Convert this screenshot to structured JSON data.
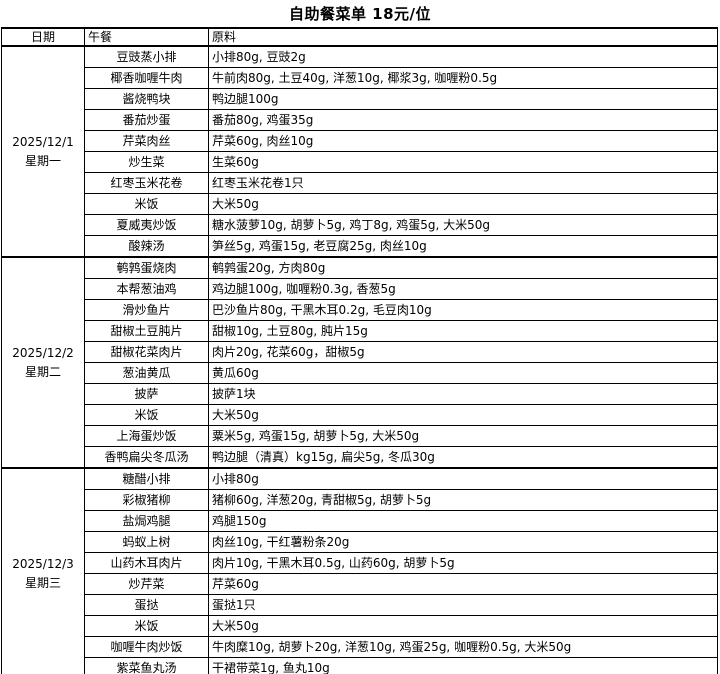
{
  "title": "自助餐菜单 18元/位",
  "header": {
    "date": "日期",
    "lunch": "午餐",
    "ingredients": "原料"
  },
  "days": [
    {
      "date": "2025/12/1",
      "weekday": "星期一",
      "rows": [
        {
          "dish": "豆豉蒸小排",
          "ingredients": "小排80g, 豆豉2g"
        },
        {
          "dish": "椰香咖喱牛肉",
          "ingredients": "牛前肉80g, 土豆40g, 洋葱10g, 椰浆3g, 咖喱粉0.5g"
        },
        {
          "dish": "酱烧鸭块",
          "ingredients": "鸭边腿100g"
        },
        {
          "dish": "番茄炒蛋",
          "ingredients": "番茄80g, 鸡蛋35g"
        },
        {
          "dish": "芹菜肉丝",
          "ingredients": "芹菜60g, 肉丝10g"
        },
        {
          "dish": "炒生菜",
          "ingredients": "生菜60g"
        },
        {
          "dish": "红枣玉米花卷",
          "ingredients": "红枣玉米花卷1只"
        },
        {
          "dish": "米饭",
          "ingredients": "大米50g"
        },
        {
          "dish": "夏威夷炒饭",
          "ingredients": "糖水菠萝10g, 胡萝卜5g, 鸡丁8g, 鸡蛋5g, 大米50g"
        },
        {
          "dish": "酸辣汤",
          "ingredients": "笋丝5g, 鸡蛋15g, 老豆腐25g, 肉丝10g"
        }
      ]
    },
    {
      "date": "2025/12/2",
      "weekday": "星期二",
      "rows": [
        {
          "dish": "鹌鹑蛋烧肉",
          "ingredients": "鹌鹑蛋20g, 方肉80g"
        },
        {
          "dish": "本帮葱油鸡",
          "ingredients": "鸡边腿100g, 咖喱粉0.3g, 香葱5g"
        },
        {
          "dish": "滑炒鱼片",
          "ingredients": "巴沙鱼片80g, 干黑木耳0.2g, 毛豆肉10g"
        },
        {
          "dish": "甜椒土豆肫片",
          "ingredients": "甜椒10g, 土豆80g, 肫片15g"
        },
        {
          "dish": "甜椒花菜肉片",
          "ingredients": "肉片20g, 花菜60g，甜椒5g"
        },
        {
          "dish": "葱油黄瓜",
          "ingredients": "黄瓜60g"
        },
        {
          "dish": "披萨",
          "ingredients": "披萨1块"
        },
        {
          "dish": "米饭",
          "ingredients": "大米50g"
        },
        {
          "dish": "上海蛋炒饭",
          "ingredients": "粟米5g, 鸡蛋15g, 胡萝卜5g, 大米50g"
        },
        {
          "dish": "香鸭扁尖冬瓜汤",
          "ingredients": "鸭边腿（清真）kg15g, 扁尖5g, 冬瓜30g"
        }
      ]
    },
    {
      "date": "2025/12/3",
      "weekday": "星期三",
      "rows": [
        {
          "dish": "糖醋小排",
          "ingredients": "小排80g"
        },
        {
          "dish": "彩椒猪柳",
          "ingredients": "猪柳60g, 洋葱20g, 青甜椒5g, 胡萝卜5g"
        },
        {
          "dish": "盐焗鸡腿",
          "ingredients": "鸡腿150g"
        },
        {
          "dish": "蚂蚁上树",
          "ingredients": "肉丝10g, 干红薯粉条20g"
        },
        {
          "dish": "山药木耳肉片",
          "ingredients": "肉片10g, 干黑木耳0.5g, 山药60g, 胡萝卜5g"
        },
        {
          "dish": "炒芹菜",
          "ingredients": "芹菜60g"
        },
        {
          "dish": "蛋挞",
          "ingredients": "蛋挞1只"
        },
        {
          "dish": "米饭",
          "ingredients": "大米50g"
        },
        {
          "dish": "咖喱牛肉炒饭",
          "ingredients": "牛肉糜10g, 胡萝卜20g, 洋葱10g, 鸡蛋25g, 咖喱粉0.5g, 大米50g"
        },
        {
          "dish": "紫菜鱼丸汤",
          "ingredients": "干裙带菜1g, 鱼丸10g"
        }
      ]
    }
  ]
}
